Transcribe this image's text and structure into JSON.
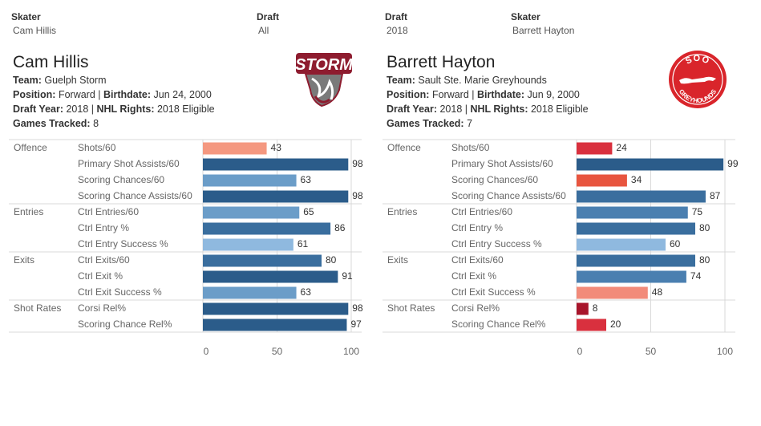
{
  "filters": [
    {
      "label": "Skater",
      "value": "Cam Hillis"
    },
    {
      "label": "Draft",
      "value": "All"
    },
    {
      "label": "Draft",
      "value": "2018"
    },
    {
      "label": "Skater",
      "value": "Barrett Hayton"
    }
  ],
  "labels": {
    "team": "Team:",
    "position": "Position:",
    "birthdate": "Birthdate:",
    "draft_year": "Draft Year:",
    "nhl_rights": "NHL Rights:",
    "games_tracked": "Games Tracked:"
  },
  "players": [
    {
      "name": "Cam Hillis",
      "team": "Guelph Storm",
      "position": "Forward",
      "birthdate": "Jun 24, 2000",
      "draft_year": "2018",
      "nhl_rights": "2018 Eligible",
      "games_tracked": "8",
      "logo_text": "STORM"
    },
    {
      "name": "Barrett Hayton",
      "team": "Sault Ste. Marie Greyhounds",
      "position": "Forward",
      "birthdate": "Jun 9, 2000",
      "draft_year": "2018",
      "nhl_rights": "2018 Eligible",
      "games_tracked": "7",
      "logo_text_top": "SOO",
      "logo_text_bottom": "GREYHOUNDS"
    }
  ],
  "chart_data": [
    {
      "type": "bar",
      "orientation": "horizontal",
      "player": "Cam Hillis",
      "xlim": [
        0,
        100
      ],
      "ticks": [
        0,
        50,
        100
      ],
      "groups": [
        {
          "name": "Offence",
          "metrics": [
            {
              "label": "Shots/60",
              "value": 43
            },
            {
              "label": "Primary Shot Assists/60",
              "value": 98
            },
            {
              "label": "Scoring Chances/60",
              "value": 63
            },
            {
              "label": "Scoring Chance Assists/60",
              "value": 98
            }
          ]
        },
        {
          "name": "Entries",
          "metrics": [
            {
              "label": "Ctrl Entries/60",
              "value": 65
            },
            {
              "label": "Ctrl Entry %",
              "value": 86
            },
            {
              "label": "Ctrl Entry Success %",
              "value": 61
            }
          ]
        },
        {
          "name": "Exits",
          "metrics": [
            {
              "label": "Ctrl Exits/60",
              "value": 80
            },
            {
              "label": "Ctrl Exit %",
              "value": 91
            },
            {
              "label": "Ctrl Exit Success %",
              "value": 63
            }
          ]
        },
        {
          "name": "Shot Rates",
          "metrics": [
            {
              "label": "Corsi Rel%",
              "value": 98
            },
            {
              "label": "Scoring Chance Rel%",
              "value": 97
            }
          ]
        }
      ]
    },
    {
      "type": "bar",
      "orientation": "horizontal",
      "player": "Barrett Hayton",
      "xlim": [
        0,
        100
      ],
      "ticks": [
        0,
        50,
        100
      ],
      "groups": [
        {
          "name": "Offence",
          "metrics": [
            {
              "label": "Shots/60",
              "value": 24
            },
            {
              "label": "Primary Shot Assists/60",
              "value": 99
            },
            {
              "label": "Scoring Chances/60",
              "value": 34
            },
            {
              "label": "Scoring Chance Assists/60",
              "value": 87
            }
          ]
        },
        {
          "name": "Entries",
          "metrics": [
            {
              "label": "Ctrl Entries/60",
              "value": 75
            },
            {
              "label": "Ctrl Entry %",
              "value": 80
            },
            {
              "label": "Ctrl Entry Success %",
              "value": 60
            }
          ]
        },
        {
          "name": "Exits",
          "metrics": [
            {
              "label": "Ctrl Exits/60",
              "value": 80
            },
            {
              "label": "Ctrl Exit %",
              "value": 74
            },
            {
              "label": "Ctrl Exit Success %",
              "value": 48
            }
          ]
        },
        {
          "name": "Shot Rates",
          "metrics": [
            {
              "label": "Corsi Rel%",
              "value": 8
            },
            {
              "label": "Scoring Chance Rel%",
              "value": 20
            }
          ]
        }
      ]
    }
  ],
  "colors": {
    "storm_red": "#8e1c2f",
    "storm_grey": "#7a7a7a",
    "soo_red": "#d9252b",
    "grid": "#d9d9d9",
    "label_text": "#666666"
  }
}
